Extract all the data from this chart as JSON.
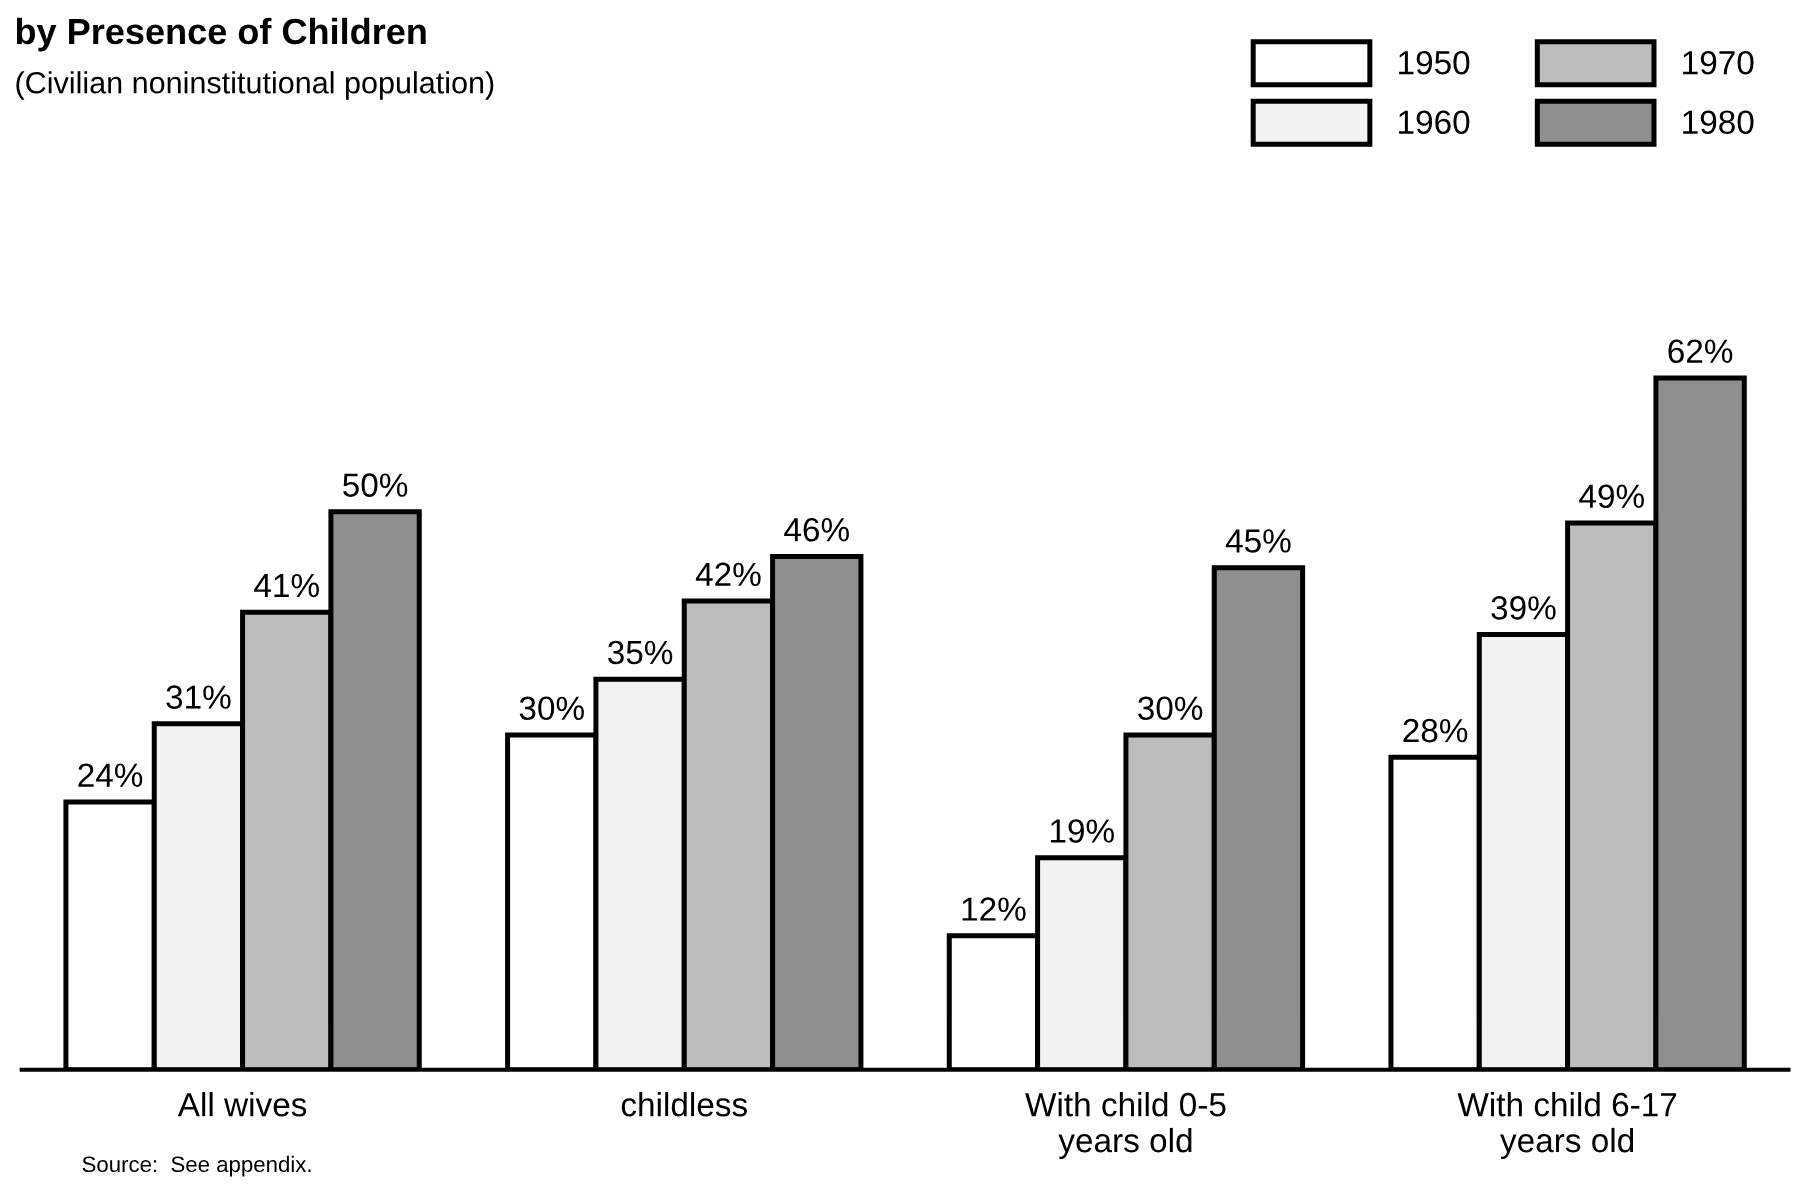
{
  "chart_data": {
    "type": "bar",
    "title": "by Presence of Children",
    "subtitle": "(Civilian noninstitutional population)",
    "categories": [
      "All wives",
      "childless",
      "With child 0-5\nyears old",
      "With child 6-17\nyears old"
    ],
    "series": [
      {
        "name": "1950",
        "color": "#ffffff",
        "values": [
          24,
          30,
          12,
          28
        ],
        "value_labels": [
          "24%",
          "30%",
          "12%",
          "28%"
        ]
      },
      {
        "name": "1960",
        "color": "#f2f2f2",
        "values": [
          31,
          35,
          19,
          39
        ],
        "value_labels": [
          "31%",
          "35%",
          "19%",
          "39%"
        ]
      },
      {
        "name": "1970",
        "color": "#bdbdbd",
        "values": [
          41,
          42,
          30,
          49
        ],
        "value_labels": [
          "41%",
          "42%",
          "30%",
          "49%"
        ]
      },
      {
        "name": "1980",
        "color": "#8f8f8f",
        "values": [
          50,
          46,
          45,
          62
        ],
        "value_labels": [
          "50%",
          "46%",
          "45%",
          "62%"
        ]
      }
    ],
    "annotations": [
      "Source:  See appendix."
    ],
    "legend": "top right",
    "grid": false
  }
}
